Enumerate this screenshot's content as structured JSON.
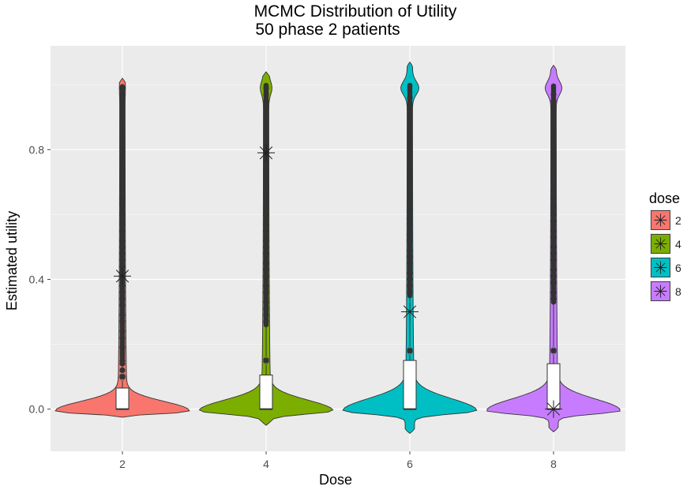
{
  "chart_data": {
    "type": "violin",
    "title": "MCMC Distribution of Utility",
    "subtitle": "50  phase 2 patients",
    "xlabel": "Dose",
    "ylabel": "Estimated utility",
    "categories": [
      "2",
      "4",
      "6",
      "8"
    ],
    "ylim": [
      -0.13,
      1.12
    ],
    "yticks": [
      0.0,
      0.4,
      0.8
    ],
    "ytick_labels": [
      "0.0",
      "0.4",
      "0.8"
    ],
    "grid": true,
    "legend": {
      "title": "dose",
      "position": "right",
      "entries": [
        "2",
        "4",
        "6",
        "8"
      ]
    },
    "series": [
      {
        "category": "2",
        "color": "#F8766D",
        "q1": 0.0,
        "median": 0.0,
        "q3": 0.065,
        "whisker_max": 0.16,
        "max": 1.02,
        "min": -0.025,
        "mean": 0.41,
        "mean_marker": "star",
        "outliers": [
          0.1,
          0.12,
          0.14,
          0.15,
          0.19,
          0.22,
          0.24,
          0.27,
          0.29,
          0.32,
          0.34,
          0.36,
          0.38,
          0.42,
          0.44,
          0.46,
          0.48,
          0.5,
          0.52,
          0.55,
          0.57,
          0.6,
          0.63,
          0.65,
          0.68,
          0.7,
          0.72,
          0.74,
          0.77,
          0.8,
          0.82,
          0.85,
          0.87,
          0.9,
          0.92,
          0.95,
          0.97,
          0.99
        ]
      },
      {
        "category": "4",
        "color": "#7CAE00",
        "q1": 0.0,
        "median": 0.0,
        "q3": 0.105,
        "whisker_max": 0.26,
        "max": 1.04,
        "min": -0.05,
        "mean": 0.79,
        "mean_marker": "star",
        "outliers": [
          0.15,
          0.27,
          0.29,
          0.31,
          0.33,
          0.36,
          0.38,
          0.41,
          0.43,
          0.45,
          0.48,
          0.5,
          0.52,
          0.55,
          0.57,
          0.6,
          0.62,
          0.65,
          0.67,
          0.69,
          0.72,
          0.74,
          0.77,
          0.8,
          0.82,
          0.84,
          0.87,
          0.89,
          0.91,
          0.93,
          0.95,
          0.97,
          0.99
        ]
      },
      {
        "category": "6",
        "color": "#00BFC4",
        "q1": 0.0,
        "median": 0.0,
        "q3": 0.15,
        "whisker_max": 0.35,
        "max": 1.07,
        "min": -0.075,
        "mean": 0.3,
        "mean_marker": "star",
        "outliers": [
          0.18,
          0.36,
          0.38,
          0.4,
          0.42,
          0.45,
          0.47,
          0.49,
          0.52,
          0.54,
          0.57,
          0.59,
          0.61,
          0.64,
          0.66,
          0.69,
          0.71,
          0.73,
          0.76,
          0.78,
          0.8,
          0.83,
          0.85,
          0.87,
          0.9,
          0.92,
          0.94,
          0.96
        ]
      },
      {
        "category": "8",
        "color": "#C77CFF",
        "q1": 0.0,
        "median": 0.0,
        "q3": 0.14,
        "whisker_max": 0.33,
        "max": 1.06,
        "min": -0.07,
        "mean": 0.0,
        "mean_marker": "star",
        "outliers": [
          0.18,
          0.34,
          0.36,
          0.39,
          0.41,
          0.43,
          0.46,
          0.48,
          0.5,
          0.53,
          0.55,
          0.58,
          0.6,
          0.62,
          0.65,
          0.67,
          0.7,
          0.72,
          0.74,
          0.77,
          0.79,
          0.81,
          0.84,
          0.86,
          0.88,
          0.91,
          0.93,
          0.95,
          0.97
        ]
      }
    ]
  }
}
